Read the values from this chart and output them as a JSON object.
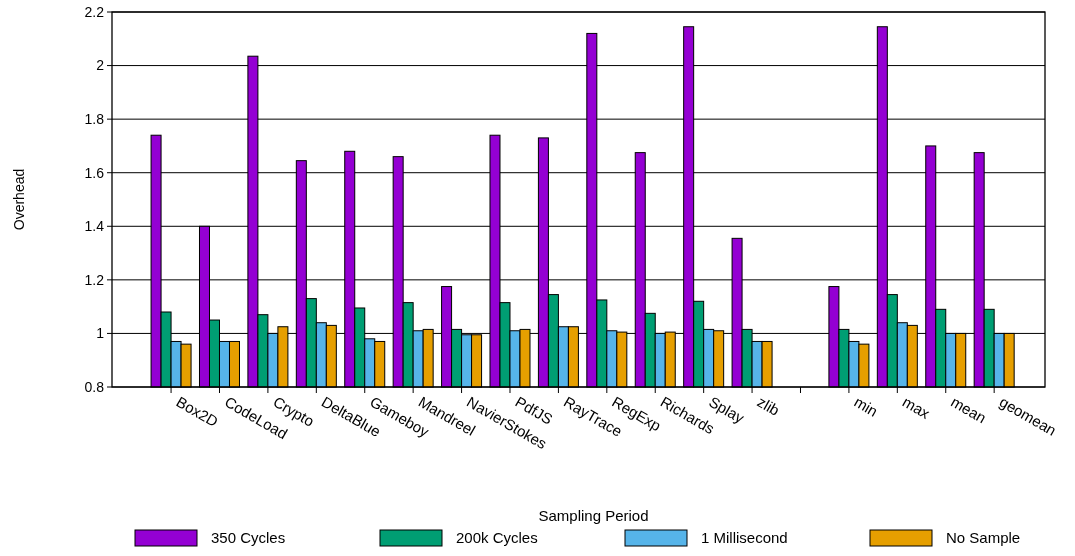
{
  "chart_data": {
    "type": "bar",
    "xlabel": "Sampling Period",
    "ylabel": "Overhead",
    "categories": [
      "Box2D",
      "CodeLoad",
      "Crypto",
      "DeltaBlue",
      "Gameboy",
      "Mandreel",
      "NavierStokes",
      "PdfJS",
      "RayTrace",
      "RegExp",
      "Richards",
      "Splay",
      "zlib",
      null,
      "min",
      "max",
      "mean",
      "geomean"
    ],
    "series": [
      {
        "name": "350 Cycles",
        "color": "#9400d3",
        "values": [
          1.74,
          1.4,
          2.035,
          1.645,
          1.68,
          1.66,
          1.175,
          1.74,
          1.73,
          2.12,
          1.675,
          2.145,
          1.355,
          null,
          1.175,
          2.145,
          1.7,
          1.675
        ]
      },
      {
        "name": "200k Cycles",
        "color": "#009e73",
        "values": [
          1.08,
          1.05,
          1.07,
          1.13,
          1.095,
          1.115,
          1.015,
          1.115,
          1.145,
          1.125,
          1.075,
          1.12,
          1.015,
          null,
          1.015,
          1.145,
          1.09,
          1.09
        ]
      },
      {
        "name": "1 Millisecond",
        "color": "#56b4e9",
        "values": [
          0.97,
          0.97,
          1.0,
          1.04,
          0.98,
          1.01,
          0.995,
          1.01,
          1.025,
          1.01,
          1.0,
          1.015,
          0.97,
          null,
          0.97,
          1.04,
          1.0,
          1.0
        ]
      },
      {
        "name": "No Sample",
        "color": "#e69f00",
        "values": [
          0.96,
          0.97,
          1.025,
          1.03,
          0.97,
          1.015,
          0.995,
          1.015,
          1.025,
          1.005,
          1.005,
          1.01,
          0.97,
          null,
          0.96,
          1.03,
          1.0,
          1.0
        ]
      }
    ],
    "ylim": [
      0.8,
      2.2
    ],
    "yticks": [
      0.8,
      1,
      1.2,
      1.4,
      1.6,
      1.8,
      2,
      2.2
    ],
    "grid": "y",
    "legend": "bottom"
  }
}
